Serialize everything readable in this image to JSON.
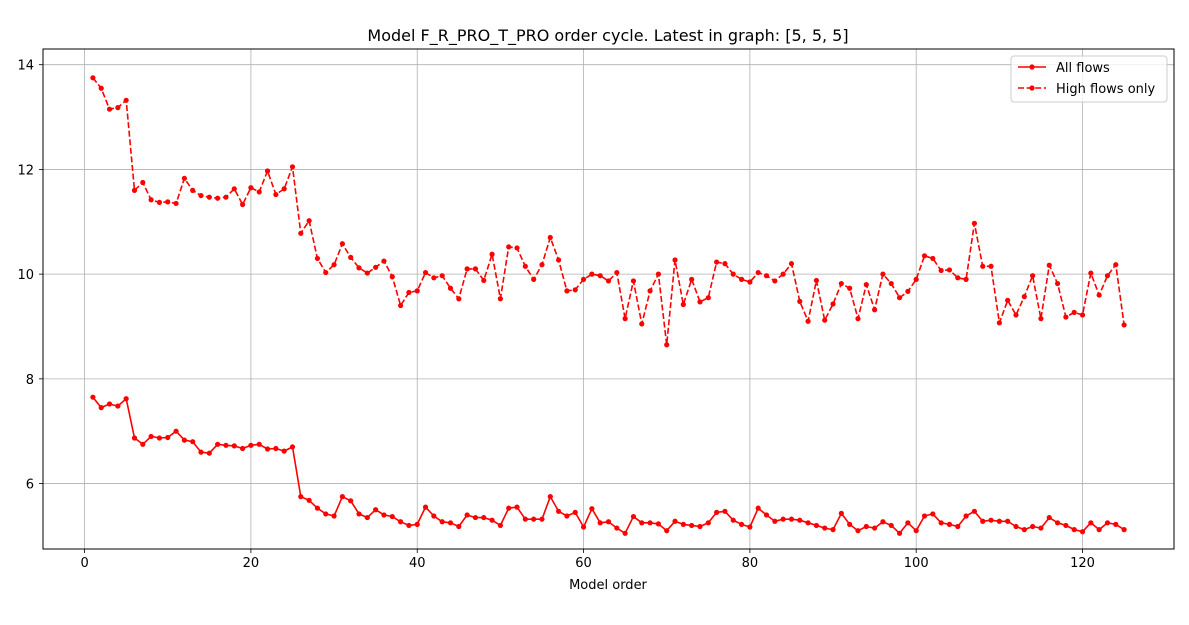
{
  "chart_data": {
    "type": "line",
    "title": "Model F_R_PRO_T_PRO order cycle. Latest in graph: [5, 5, 5]",
    "xlabel": "Model order",
    "ylabel": "",
    "xlim": [
      -5,
      131
    ],
    "ylim": [
      4.75,
      14.3
    ],
    "xticks": [
      0,
      20,
      40,
      60,
      80,
      100,
      120
    ],
    "yticks": [
      6,
      8,
      10,
      12,
      14
    ],
    "grid": true,
    "legend_position": "top-right",
    "colors": {
      "series": "#ff0000",
      "grid": "#b0b0b0"
    },
    "x": [
      1,
      2,
      3,
      4,
      5,
      6,
      7,
      8,
      9,
      10,
      11,
      12,
      13,
      14,
      15,
      16,
      17,
      18,
      19,
      20,
      21,
      22,
      23,
      24,
      25,
      26,
      27,
      28,
      29,
      30,
      31,
      32,
      33,
      34,
      35,
      36,
      37,
      38,
      39,
      40,
      41,
      42,
      43,
      44,
      45,
      46,
      47,
      48,
      49,
      50,
      51,
      52,
      53,
      54,
      55,
      56,
      57,
      58,
      59,
      60,
      61,
      62,
      63,
      64,
      65,
      66,
      67,
      68,
      69,
      70,
      71,
      72,
      73,
      74,
      75,
      76,
      77,
      78,
      79,
      80,
      81,
      82,
      83,
      84,
      85,
      86,
      87,
      88,
      89,
      90,
      91,
      92,
      93,
      94,
      95,
      96,
      97,
      98,
      99,
      100,
      101,
      102,
      103,
      104,
      105,
      106,
      107,
      108,
      109,
      110,
      111,
      112,
      113,
      114,
      115,
      116,
      117,
      118,
      119,
      120,
      121,
      122,
      123,
      124,
      125
    ],
    "series": [
      {
        "name": "All flows",
        "style": "solid",
        "values": [
          7.65,
          7.45,
          7.52,
          7.48,
          7.62,
          6.87,
          6.75,
          6.9,
          6.87,
          6.88,
          7.0,
          6.83,
          6.8,
          6.6,
          6.58,
          6.75,
          6.73,
          6.72,
          6.67,
          6.73,
          6.75,
          6.66,
          6.67,
          6.62,
          6.7,
          5.75,
          5.68,
          5.53,
          5.42,
          5.38,
          5.75,
          5.67,
          5.42,
          5.35,
          5.5,
          5.4,
          5.37,
          5.27,
          5.2,
          5.22,
          5.55,
          5.38,
          5.27,
          5.25,
          5.18,
          5.4,
          5.35,
          5.35,
          5.3,
          5.2,
          5.53,
          5.55,
          5.32,
          5.32,
          5.32,
          5.75,
          5.47,
          5.38,
          5.45,
          5.17,
          5.52,
          5.25,
          5.27,
          5.15,
          5.05,
          5.37,
          5.25,
          5.25,
          5.23,
          5.1,
          5.28,
          5.22,
          5.2,
          5.18,
          5.25,
          5.45,
          5.47,
          5.3,
          5.22,
          5.17,
          5.53,
          5.4,
          5.28,
          5.32,
          5.32,
          5.3,
          5.25,
          5.2,
          5.15,
          5.12,
          5.43,
          5.22,
          5.1,
          5.18,
          5.15,
          5.27,
          5.2,
          5.05,
          5.25,
          5.1,
          5.38,
          5.42,
          5.25,
          5.22,
          5.18,
          5.38,
          5.47,
          5.28,
          5.3,
          5.28,
          5.28,
          5.18,
          5.12,
          5.18,
          5.15,
          5.35,
          5.25,
          5.2,
          5.12,
          5.08,
          5.25,
          5.12,
          5.25,
          5.22,
          5.12
        ]
      },
      {
        "name": "High flows only",
        "style": "dashed",
        "values": [
          13.75,
          13.55,
          13.15,
          13.18,
          13.32,
          11.6,
          11.75,
          11.42,
          11.37,
          11.38,
          11.35,
          11.83,
          11.6,
          11.5,
          11.47,
          11.45,
          11.47,
          11.63,
          11.33,
          11.65,
          11.57,
          11.97,
          11.52,
          11.63,
          12.05,
          10.78,
          11.02,
          10.3,
          10.03,
          10.18,
          10.58,
          10.32,
          10.12,
          10.02,
          10.13,
          10.25,
          9.95,
          9.4,
          9.65,
          9.68,
          10.03,
          9.93,
          9.97,
          9.73,
          9.53,
          10.1,
          10.1,
          9.88,
          10.38,
          9.53,
          10.52,
          10.5,
          10.15,
          9.9,
          10.18,
          10.7,
          10.27,
          9.68,
          9.7,
          9.9,
          10.0,
          9.97,
          9.87,
          10.03,
          9.15,
          9.87,
          9.05,
          9.68,
          10.0,
          8.65,
          10.27,
          9.42,
          9.9,
          9.47,
          9.55,
          10.23,
          10.2,
          10.0,
          9.9,
          9.85,
          10.03,
          9.97,
          9.87,
          10.0,
          10.2,
          9.48,
          9.1,
          9.88,
          9.12,
          9.43,
          9.82,
          9.73,
          9.15,
          9.8,
          9.32,
          10.0,
          9.82,
          9.55,
          9.67,
          9.9,
          10.35,
          10.3,
          10.07,
          10.08,
          9.93,
          9.9,
          10.97,
          10.15,
          10.15,
          9.07,
          9.5,
          9.22,
          9.57,
          9.97,
          9.15,
          10.17,
          9.82,
          9.18,
          9.27,
          9.22,
          10.02,
          9.6,
          9.97,
          10.18,
          9.03
        ]
      }
    ]
  }
}
